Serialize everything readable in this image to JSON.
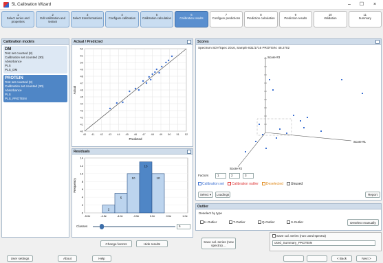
{
  "window": {
    "title": "5L Calibration Wizard",
    "minimize": "–",
    "maximize": "☐",
    "close": "×"
  },
  "steps": [
    {
      "num": "1",
      "label": "Select series and properties",
      "state": "done"
    },
    {
      "num": "2",
      "label": "Edit calibration and testset",
      "state": "done"
    },
    {
      "num": "3",
      "label": "Select transformations",
      "state": "done"
    },
    {
      "num": "4",
      "label": "Configure calibration",
      "state": "done"
    },
    {
      "num": "5",
      "label": "Calibration calculation",
      "state": "done"
    },
    {
      "num": "6",
      "label": "Calibration results",
      "state": "active"
    },
    {
      "num": "7",
      "label": "Configure predictions",
      "state": "todo"
    },
    {
      "num": "8",
      "label": "Prediction calculation",
      "state": "todo"
    },
    {
      "num": "9",
      "label": "Prediction results",
      "state": "todo"
    },
    {
      "num": "10",
      "label": "Validation",
      "state": "todo"
    },
    {
      "num": "11",
      "label": "Summary",
      "state": "todo"
    }
  ],
  "calibration_models": {
    "title": "Calibration models",
    "models": [
      {
        "name": "DM",
        "lines": [
          "Test set counted (8)",
          "Calibration set counted (30)",
          "Absorbance",
          "PLS",
          "PLS_DM"
        ]
      },
      {
        "name": "PROTEIN",
        "lines": [
          "Test set counted (8)",
          "Calibration set counted (30)",
          "Absorbance",
          "PLS",
          "PLS_PROTEIN"
        ]
      }
    ],
    "change_factors": "Change factors",
    "hide_results": "Hide results"
  },
  "actual_predicted": {
    "title": "Actual / Predicted",
    "xlabel": "Predicted",
    "ylabel": "Actual"
  },
  "residuals": {
    "title": "Residuals",
    "xlabel": "",
    "ylabel": "Frequency",
    "classes_label": "Classes",
    "classes_value": "5"
  },
  "chart_data": [
    {
      "type": "scatter",
      "title": "Actual / Predicted",
      "xlabel": "Predicted",
      "ylabel": "Actual",
      "xlim": [
        40,
        52
      ],
      "ylim": [
        40,
        52
      ],
      "xticks": [
        "40",
        "41",
        "42",
        "43",
        "44",
        "45",
        "46",
        "47",
        "48",
        "49",
        "50",
        "51",
        "52"
      ],
      "yticks": [
        "40",
        "41",
        "42",
        "43",
        "44",
        "45",
        "46",
        "47",
        "48",
        "49",
        "50",
        "51",
        "52"
      ],
      "points": [
        [
          43.0,
          43.3
        ],
        [
          43.8,
          44.1
        ],
        [
          44.5,
          44.2
        ],
        [
          45.3,
          45.8
        ],
        [
          46.0,
          46.2
        ],
        [
          46.4,
          46.0
        ],
        [
          46.9,
          47.3
        ],
        [
          47.3,
          47.0
        ],
        [
          47.6,
          47.9
        ],
        [
          48.0,
          48.3
        ],
        [
          48.3,
          48.6
        ],
        [
          48.8,
          48.5
        ],
        [
          49.1,
          49.4
        ],
        [
          49.6,
          50.0
        ],
        [
          49.9,
          50.3
        ],
        [
          50.3,
          50.9
        ],
        [
          48.5,
          49.0
        ],
        [
          47.8,
          47.5
        ]
      ],
      "grid": true
    },
    {
      "type": "bar",
      "title": "Residuals",
      "ylabel": "Frequency",
      "categories": [
        "-1.5e",
        "-1.0e",
        "-0.5e",
        "0.0e",
        "0.5e"
      ],
      "values": [
        2,
        5,
        10,
        13,
        10
      ],
      "xticks": [
        "-5.0e",
        "-4.5e",
        "-4.0e",
        "-3.5e",
        "0.0e",
        "0.5e",
        "1.0e"
      ],
      "ylim": [
        0,
        14
      ],
      "yticks": [
        "0",
        "2",
        "4",
        "6",
        "8",
        "10",
        "12",
        "14"
      ]
    },
    {
      "type": "scatter",
      "title": "Scores",
      "subtitle": "Spectrum SDY/Spec 2016, Sample 831/1716 PROTEIN: 48.2702",
      "axis_labels": [
        "Score #1",
        "Score #2",
        "Score #3"
      ]
    }
  ],
  "scores": {
    "title": "Scores",
    "subtitle": "Spectrum SDY/Spec 2016, Sample 831/1716 PROTEIN: 48.2702",
    "factors_label": "Factors",
    "factor_values": [
      "1",
      "2",
      "3"
    ],
    "legend": [
      {
        "label": "Calibration set",
        "color": "#3b6fd1"
      },
      {
        "label": "Calibration outlier",
        "color": "#d33"
      },
      {
        "label": "Deselected",
        "color": "#e08a1c"
      },
      {
        "label": "Unused",
        "color": "#444"
      }
    ],
    "select_button": "Select ▾",
    "loadings_button": "Loadings",
    "report_button": "Report"
  },
  "outlier": {
    "title": "Outlier",
    "deselect_by_type": "Deselect by type",
    "types": [
      "H-Outlier",
      "T-Outlier",
      "Q-Outlier",
      "S-Outlier"
    ],
    "deselect_manually": "Deselect manually"
  },
  "footer": {
    "save_button": "Save cal. series (new spectra) ...",
    "save_checkbox": "Save cal. series (non used spectra)",
    "series_value": "used_Summary_PROTEIN",
    "user_settings": "User settings",
    "about": "About",
    "help": "Help",
    "extra1": "",
    "extra2": "",
    "back": "< Back",
    "next": "Next >"
  },
  "colors": {
    "accent": "#5a8fcf",
    "panel_header": "#cfdcea",
    "bar_dark": "#4f86c6",
    "bar_light": "#bcd4ee"
  }
}
